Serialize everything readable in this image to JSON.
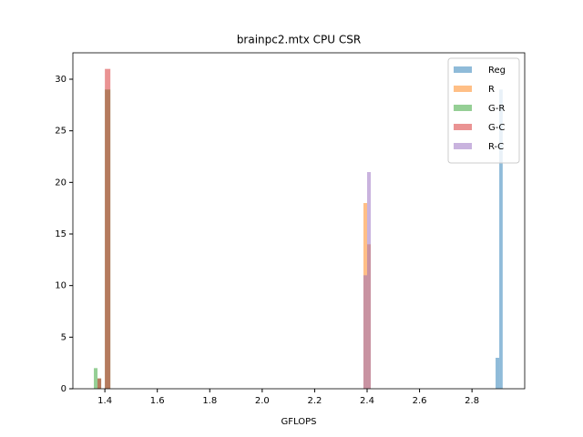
{
  "chart_data": {
    "type": "histogram",
    "title": "brainpc2.mtx CPU CSR",
    "xlabel": "GFLOPS",
    "xlim": [
      1.278,
      3.001
    ],
    "ylim": [
      0,
      32.56
    ],
    "xticks": [
      1.4,
      1.6,
      1.8,
      {
        "value": 2,
        "label": "2.0"
      },
      2.2,
      2.4,
      2.6,
      2.8
    ],
    "yticks": [
      0,
      5,
      10,
      15,
      20,
      25,
      30
    ],
    "alpha": 0.5,
    "legend": "upper right",
    "series": [
      {
        "name": "Reg",
        "color": "#1f77b4",
        "bins": [
          2.89,
          2.904,
          2.917
        ],
        "values": [
          3,
          29
        ]
      },
      {
        "name": "R",
        "color": "#ff7f0e",
        "bins": [
          2.386,
          2.4,
          2.414
        ],
        "values": [
          18,
          14
        ]
      },
      {
        "name": "G-R",
        "color": "#2ca02c",
        "bins": [
          1.358,
          1.372,
          1.386,
          1.4,
          1.421
        ],
        "values": [
          2,
          1,
          0,
          29
        ]
      },
      {
        "name": "G-C",
        "color": "#d62728",
        "bins": [
          1.372,
          1.386,
          1.4,
          1.421
        ],
        "values": [
          1,
          0,
          31
        ]
      },
      {
        "name": "R-C",
        "color": "#9467bd",
        "bins": [
          2.386,
          2.4,
          2.414
        ],
        "values": [
          11,
          21
        ]
      }
    ]
  }
}
